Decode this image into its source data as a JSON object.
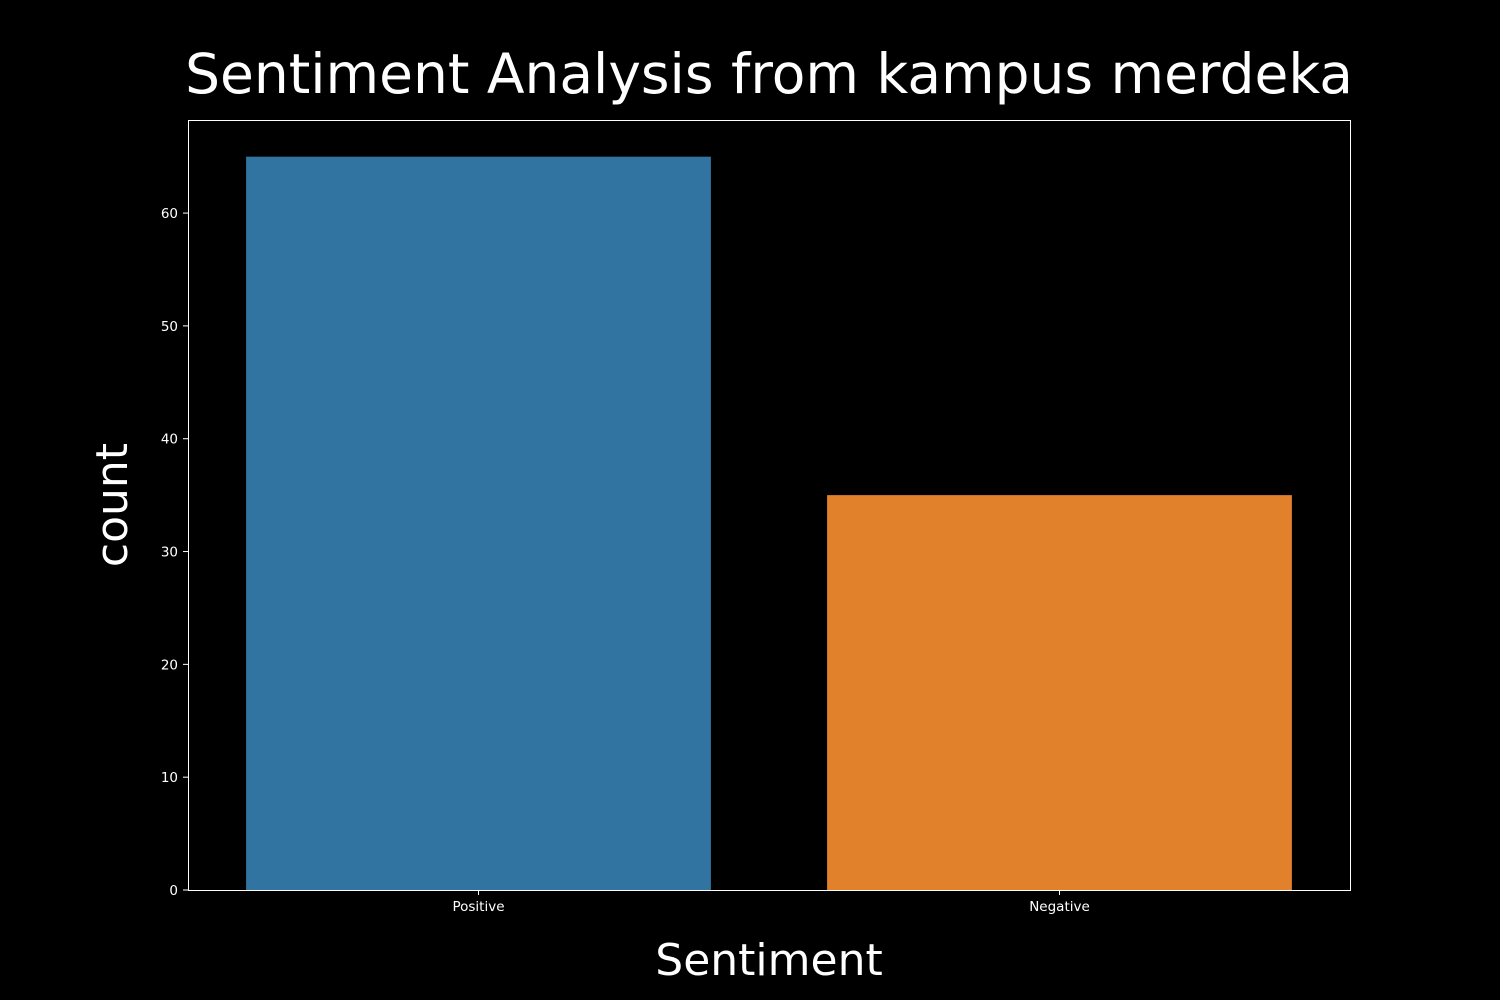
{
  "chart_data": {
    "type": "bar",
    "title": "Sentiment Analysis from kampus merdeka",
    "xlabel": "Sentiment",
    "ylabel": "count",
    "categories": [
      "Positive",
      "Negative"
    ],
    "values": [
      65,
      35
    ],
    "colors": [
      "#3274a1",
      "#e1812c"
    ],
    "ylim": [
      0,
      68.25
    ],
    "yticks": [
      0,
      10,
      20,
      30,
      40,
      50,
      60
    ],
    "grid": false,
    "background": "#000000",
    "foreground": "#ffffff"
  }
}
